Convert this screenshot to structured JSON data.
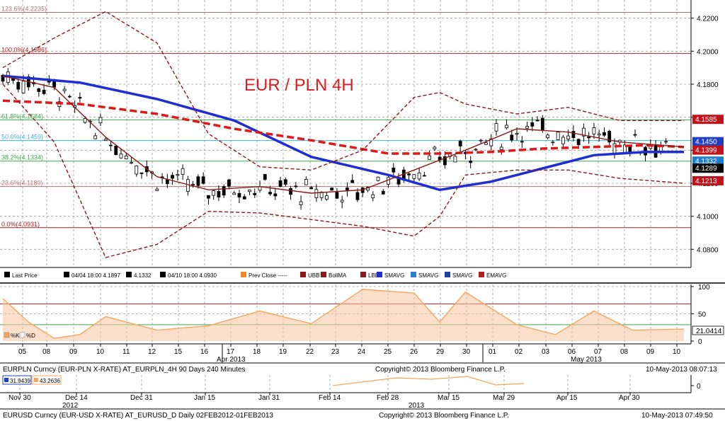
{
  "chart_data": [
    {
      "type": "line",
      "title": "EUR / PLN 4H",
      "y_ticks": [
        "4.0800",
        "4.1000",
        "4.1200",
        "4.1400",
        "4.1600",
        "4.1800",
        "4.2000",
        "4.2200"
      ],
      "ylim": [
        4.069,
        4.231
      ],
      "x_ticks": [
        "05",
        "08",
        "09",
        "10",
        "11",
        "12",
        "15",
        "16",
        "17",
        "18",
        "19",
        "22",
        "23",
        "24",
        "25",
        "26",
        "29",
        "30",
        "01",
        "02",
        "03",
        "06",
        "07",
        "08",
        "09",
        "10"
      ],
      "month_labels": [
        "Apr 2013",
        "May 2013"
      ],
      "fib_levels": [
        {
          "label": "123.6%(4.2235)",
          "value": 4.2235,
          "color": "#b07070"
        },
        {
          "label": "100.0%(4.1986)",
          "value": 4.1986,
          "color": "#b02020"
        },
        {
          "label": "61.8%(4.1584)",
          "value": 4.1584,
          "color": "#3aa84a"
        },
        {
          "label": "50.0%(4.1459)",
          "value": 4.1459,
          "color": "#3fb6d8"
        },
        {
          "label": "38.2%(4.1334)",
          "value": 4.1334,
          "color": "#3aa84a"
        },
        {
          "label": "23.6%(4.1180)",
          "value": 4.118,
          "color": "#b07070"
        },
        {
          "label": "0.0%(4.0931)",
          "value": 4.0931,
          "color": "#b02020"
        }
      ],
      "price_badges": [
        {
          "text": "4.1585",
          "value": 4.1585,
          "color": "#c0141c"
        },
        {
          "text": "4.1450",
          "value": 4.145,
          "color": "#1f3fbf"
        },
        {
          "text": "4.1399",
          "value": 4.1399,
          "color": "#c0141c"
        },
        {
          "text": "4.1332",
          "value": 4.1332,
          "color": "#1f7fcf"
        },
        {
          "text": "4.1289",
          "value": 4.1289,
          "color": "#000000"
        },
        {
          "text": "4.1213",
          "value": 4.1213,
          "color": "#c0141c"
        }
      ],
      "legend": [
        {
          "icon": "price",
          "text": "Last Price"
        },
        {
          "icon": "up",
          "text": "04/04 18:00 4.1897"
        },
        {
          "icon": "plus",
          "text": "4.1332"
        },
        {
          "icon": "down",
          "text": "04/10 18:00 4.0930"
        },
        {
          "icon": "prev",
          "text": "Prev Close -----"
        },
        {
          "icon": "ubb",
          "text": "UBB"
        },
        {
          "icon": "bollma",
          "text": "BollMA"
        },
        {
          "icon": "lbb",
          "text": "LBB"
        },
        {
          "icon": "smavg1",
          "text": "SMAVG"
        },
        {
          "icon": "smavg2",
          "text": "SMAVG"
        },
        {
          "icon": "smavg3",
          "text": "SMAVG"
        },
        {
          "icon": "emavg",
          "text": "EMAVG"
        }
      ],
      "series": [
        {
          "name": "SMAVG long",
          "color": "#1f2fcf",
          "x": [
            0,
            30,
            60,
            90,
            120,
            150,
            170,
            190,
            210,
            230,
            250,
            265
          ],
          "y": [
            4.185,
            4.181,
            4.171,
            4.158,
            4.136,
            4.125,
            4.116,
            4.121,
            4.129,
            4.137,
            4.139,
            4.139
          ]
        },
        {
          "name": "EMAVG",
          "color": "#e01818",
          "x": [
            0,
            30,
            60,
            90,
            120,
            150,
            170,
            190,
            210,
            230,
            250,
            265
          ],
          "y": [
            4.17,
            4.168,
            4.162,
            4.153,
            4.146,
            4.138,
            4.138,
            4.139,
            4.141,
            4.142,
            4.143,
            4.142
          ]
        },
        {
          "name": "BollMA",
          "color": "#8b1a1a",
          "x": [
            0,
            20,
            40,
            60,
            80,
            100,
            120,
            140,
            160,
            180,
            200,
            220,
            240,
            265
          ],
          "y": [
            4.185,
            4.178,
            4.148,
            4.124,
            4.116,
            4.118,
            4.114,
            4.116,
            4.128,
            4.14,
            4.153,
            4.151,
            4.145,
            4.142
          ]
        },
        {
          "name": "UBB",
          "color": "#8b1a1a",
          "x": [
            0,
            20,
            40,
            60,
            80,
            100,
            120,
            140,
            160,
            170,
            180,
            200,
            220,
            240,
            265
          ],
          "y": [
            4.19,
            4.208,
            4.224,
            4.205,
            4.15,
            4.13,
            4.128,
            4.14,
            4.172,
            4.175,
            4.168,
            4.162,
            4.166,
            4.158,
            4.158
          ]
        },
        {
          "name": "LBB",
          "color": "#8b1a1a",
          "x": [
            0,
            20,
            40,
            60,
            80,
            100,
            120,
            140,
            160,
            170,
            180,
            200,
            220,
            240,
            265
          ],
          "y": [
            4.18,
            4.145,
            4.075,
            4.083,
            4.103,
            4.102,
            4.098,
            4.094,
            4.088,
            4.1,
            4.125,
            4.128,
            4.128,
            4.123,
            4.12
          ]
        }
      ]
    },
    {
      "type": "area",
      "y_ticks": [
        "100",
        "50",
        "0"
      ],
      "ylim": [
        0,
        100
      ],
      "readout_label": "21.0414",
      "reference_lines": [
        {
          "value": 68,
          "color": "#b02020"
        },
        {
          "value": 30,
          "color": "#3aa84a"
        }
      ],
      "series": [
        {
          "name": "%K",
          "color": "#f5a55e",
          "x": [
            0,
            10,
            20,
            30,
            40,
            60,
            80,
            100,
            120,
            140,
            160,
            170,
            180,
            200,
            215,
            230,
            245,
            265
          ],
          "y": [
            78,
            35,
            5,
            12,
            45,
            20,
            28,
            55,
            32,
            95,
            88,
            35,
            90,
            30,
            12,
            55,
            20,
            22
          ]
        }
      ]
    }
  ],
  "stoch_legend": [
    {
      "text": "%K",
      "color": "#f5a55e"
    },
    {
      "text": "%D",
      "color": "#ffffff"
    }
  ],
  "footer_1": {
    "left": "EURPLN Curncy (EUR-PLN X-RATE) AT_EURPLN_4H 90 Days 240 Minutes",
    "center": "Copyright© 2013 Bloomberg Finance L.P.",
    "right": "10-May-2013 08:07:13"
  },
  "lower_chart": {
    "readouts": [
      {
        "text": "31.9439",
        "color": "#1f3fbf"
      },
      {
        "text": "43.2636",
        "color": "#f5a55e"
      }
    ],
    "x_ticks": [
      "Nov 30",
      "Dec 14",
      "Dec 31",
      "Jan 15",
      "Jan 31",
      "Feb 14",
      "Feb 28",
      "Mar 15",
      "Mar 29",
      "Apr 15",
      "Apr 30"
    ],
    "years": [
      "2012",
      "2013"
    ],
    "y_tick": "0"
  },
  "footer_2": {
    "left": "EURUSD Curncy (EUR-USD X-RATE) AT_EURUSD_D  Daily 02FEB2012-01FEB2013",
    "center": "Copyright© 2013 Bloomberg Finance L.P.",
    "right": "10-May-2013 07:49:50"
  }
}
